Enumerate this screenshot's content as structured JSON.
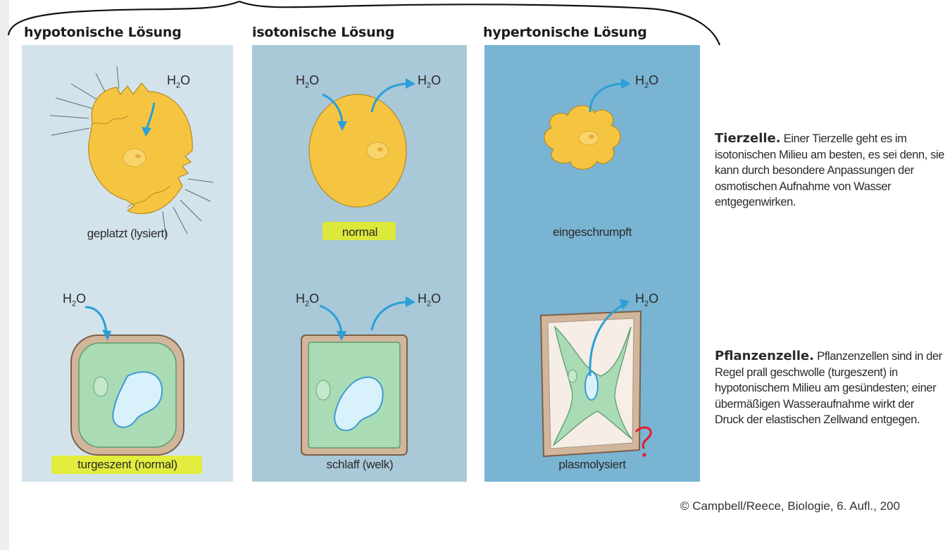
{
  "columns": [
    {
      "title": "hypotonische Lösung",
      "animal_label": "geplatzt (lysiert)",
      "plant_label": "turgeszent (normal)",
      "bg": "#d3e3ec"
    },
    {
      "title": "isotonische Lösung",
      "animal_label": "normal",
      "plant_label": "schlaff (welk)",
      "bg": "#a9c8d8"
    },
    {
      "title": "hypertonische Lösung",
      "animal_label": "eingeschrumpft",
      "plant_label": "plasmolysiert",
      "bg": "#7ab4d3"
    }
  ],
  "water_label": {
    "main": "H",
    "sub": "2",
    "tail": "O"
  },
  "animal_desc": {
    "bold": "Tierzelle.",
    "text": " Einer Tierzelle geht es im isotonischen Milieu am besten, es sei denn, sie kann durch besondere Anpassungen der osmotischen Aufnahme von Wasser entgegenwirken."
  },
  "plant_desc": {
    "bold": "Pflanzenzelle.",
    "text": " Pflanzenzellen sind in der Regel prall geschwolle (turgeszent) in hypotonischem Milieu am gesündesten; einer übermäßigen Wasseraufnahme wirkt der Druck der elastischen Zellwand entgegen."
  },
  "copyright": "© Campbell/Reece, Biologie, 6. Aufl., 200",
  "colors": {
    "highlight": "#e5ef1e",
    "arrow": "#2a9fd8",
    "cell_yellow": "#f5c542",
    "plant_green": "#a9dcb4",
    "cell_wall": "#d2b69c",
    "annotation_red": "#e8192c"
  }
}
